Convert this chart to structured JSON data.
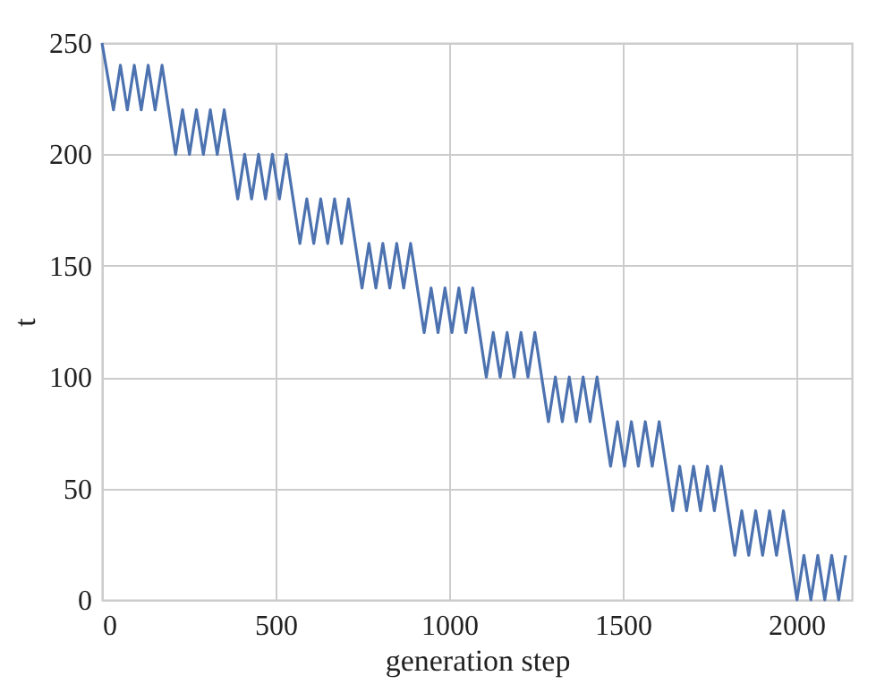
{
  "chart_data": {
    "type": "line",
    "xlabel": "generation step",
    "ylabel": "t",
    "xlim": [
      0,
      2160
    ],
    "ylim": [
      0,
      250
    ],
    "xticks": [
      0,
      500,
      1000,
      1500,
      2000
    ],
    "yticks": [
      0,
      50,
      100,
      150,
      200,
      250
    ],
    "grid": true,
    "legend": false,
    "series": [
      {
        "color": "#4c72b0",
        "x": [
          0,
          33,
          53,
          73,
          93,
          113,
          133,
          153,
          173,
          212,
          232,
          252,
          272,
          292,
          312,
          332,
          352,
          391,
          411,
          431,
          451,
          471,
          491,
          511,
          531,
          570,
          590,
          610,
          630,
          650,
          670,
          690,
          710,
          749,
          769,
          789,
          809,
          829,
          849,
          869,
          889,
          928,
          948,
          968,
          988,
          1008,
          1028,
          1048,
          1068,
          1107,
          1127,
          1147,
          1167,
          1187,
          1207,
          1227,
          1247,
          1286,
          1306,
          1326,
          1346,
          1366,
          1386,
          1406,
          1426,
          1465,
          1485,
          1505,
          1525,
          1545,
          1565,
          1585,
          1605,
          1644,
          1664,
          1684,
          1704,
          1724,
          1744,
          1764,
          1784,
          1823,
          1843,
          1863,
          1883,
          1903,
          1923,
          1943,
          1963,
          2002,
          2022,
          2042,
          2062,
          2082,
          2102,
          2122,
          2142
        ],
        "values": [
          250,
          220,
          240,
          220,
          240,
          220,
          240,
          220,
          240,
          200,
          220,
          200,
          220,
          200,
          220,
          200,
          220,
          180,
          200,
          180,
          200,
          180,
          200,
          180,
          200,
          160,
          180,
          160,
          180,
          160,
          180,
          160,
          180,
          140,
          160,
          140,
          160,
          140,
          160,
          140,
          160,
          120,
          140,
          120,
          140,
          120,
          140,
          120,
          140,
          100,
          120,
          100,
          120,
          100,
          120,
          100,
          120,
          80,
          100,
          80,
          100,
          80,
          100,
          80,
          100,
          60,
          80,
          60,
          80,
          60,
          80,
          60,
          80,
          40,
          60,
          40,
          60,
          40,
          60,
          40,
          60,
          20,
          40,
          20,
          40,
          20,
          40,
          20,
          40,
          0,
          20,
          0,
          20,
          0,
          20,
          0,
          20
        ]
      }
    ]
  }
}
